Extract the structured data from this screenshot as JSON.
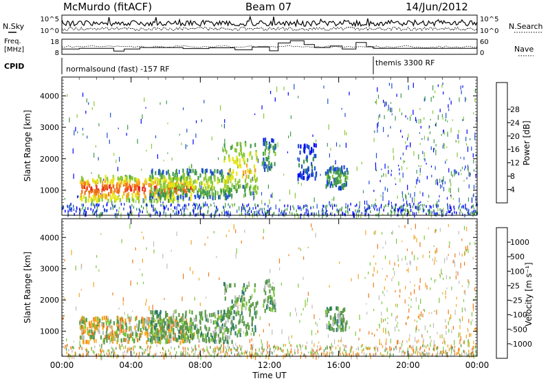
{
  "header": {
    "station": "McMurdo (fitACF)",
    "beam": "Beam 07",
    "date": "14/Jun/2012"
  },
  "labels": {
    "nsky": "N.Sky",
    "nsearch": "N.Search",
    "freq_line1": "Freq.",
    "freq_line2": "[MHz]",
    "nave": "Nave",
    "cpid": "CPID"
  },
  "cpid_segments": [
    {
      "label": "normalsound (fast) -157 RF",
      "start_hour": 0.0,
      "end_hour": 18.0
    },
    {
      "label": "themis 3300 RF",
      "start_hour": 18.0,
      "end_hour": 24.0
    }
  ],
  "noise_panel": {
    "left_ticks": [
      "10^5",
      "10^0"
    ],
    "right_ticks": [
      "10^5",
      "10^0"
    ]
  },
  "freq_panel": {
    "left_ticks": [
      "18",
      "8"
    ],
    "right_ticks": [
      "60",
      "0"
    ],
    "freq_steps": [
      {
        "start": 0.0,
        "end": 1.0,
        "mhz": 11.5
      },
      {
        "start": 1.0,
        "end": 3.0,
        "mhz": 12.0
      },
      {
        "start": 3.0,
        "end": 3.6,
        "mhz": 10.2
      },
      {
        "start": 3.6,
        "end": 4.5,
        "mhz": 11.5
      },
      {
        "start": 4.5,
        "end": 7.0,
        "mhz": 12.5
      },
      {
        "start": 7.0,
        "end": 8.5,
        "mhz": 11.8
      },
      {
        "start": 8.5,
        "end": 10.0,
        "mhz": 12.3
      },
      {
        "start": 10.0,
        "end": 11.0,
        "mhz": 11.0
      },
      {
        "start": 11.0,
        "end": 12.0,
        "mhz": 12.8
      },
      {
        "start": 12.0,
        "end": 12.5,
        "mhz": 10.3
      },
      {
        "start": 12.5,
        "end": 13.2,
        "mhz": 15.5
      },
      {
        "start": 13.2,
        "end": 14.0,
        "mhz": 17.0
      },
      {
        "start": 14.0,
        "end": 14.6,
        "mhz": 14.5
      },
      {
        "start": 14.6,
        "end": 15.5,
        "mhz": 12.5
      },
      {
        "start": 15.5,
        "end": 16.2,
        "mhz": 13.5
      },
      {
        "start": 16.2,
        "end": 17.0,
        "mhz": 11.5
      },
      {
        "start": 17.0,
        "end": 17.6,
        "mhz": 15.8
      },
      {
        "start": 17.6,
        "end": 18.0,
        "mhz": 13.0
      },
      {
        "start": 18.0,
        "end": 24.0,
        "mhz": 12.0
      }
    ]
  },
  "chart_data": [
    {
      "type": "heatmap",
      "quantity": "Power",
      "ylabel": "Slant Range [km]",
      "ylim": [
        200,
        4600
      ],
      "yticks": [
        "1000",
        "2000",
        "3000",
        "4000"
      ],
      "colorbar_label": "Power [dB]",
      "colorbar_ticks": [
        "4",
        "8",
        "12",
        "16",
        "20",
        "24",
        "28"
      ],
      "colorbar_colors": [
        "#0000ff",
        "#1f4fd0",
        "#3f9a4a",
        "#8ac837",
        "#e8e415",
        "#f5a623",
        "#f06a1a",
        "#e8281e",
        "#ee0000"
      ],
      "features": [
        {
          "t0": 1.0,
          "t1": 7.5,
          "r0": 700,
          "r1": 1500,
          "value": 28
        },
        {
          "t0": 5.0,
          "t1": 9.8,
          "r0": 800,
          "r1": 1700,
          "value": 16
        },
        {
          "t0": 9.3,
          "t1": 11.3,
          "r0": 900,
          "r1": 2600,
          "value": 20
        },
        {
          "t0": 11.6,
          "t1": 12.3,
          "r0": 1700,
          "r1": 2700,
          "value": 12
        },
        {
          "t0": 13.6,
          "t1": 14.7,
          "r0": 1400,
          "r1": 2500,
          "value": 8
        },
        {
          "t0": 15.2,
          "t1": 16.5,
          "r0": 1100,
          "r1": 1800,
          "value": 12
        }
      ]
    },
    {
      "type": "heatmap",
      "quantity": "Velocity",
      "ylabel": "Slant Range [km]",
      "ylim": [
        200,
        4600
      ],
      "yticks": [
        "1000",
        "2000",
        "3000",
        "4000"
      ],
      "colorbar_label": "Velocity [m s⁻¹]",
      "colorbar_ticks": [
        "1000",
        "500",
        "100",
        "25",
        "-25",
        "-100",
        "-500",
        "-1000"
      ],
      "colorbar_colors": [
        "#1e3fc8",
        "#2a7a6a",
        "#5a9a4a",
        "#7ac83a",
        "#bdbdbd",
        "#f5a623",
        "#f07818",
        "#e8281e",
        "#ee0000"
      ],
      "features": [
        {
          "t0": 1.0,
          "t1": 7.5,
          "r0": 700,
          "r1": 1500,
          "value": -100
        },
        {
          "t0": 5.0,
          "t1": 9.8,
          "r0": 700,
          "r1": 1700,
          "value": 100
        },
        {
          "t0": 9.3,
          "t1": 11.3,
          "r0": 900,
          "r1": 2600,
          "value": 100
        },
        {
          "t0": 11.6,
          "t1": 12.3,
          "r0": 1700,
          "r1": 2700,
          "value": 100
        },
        {
          "t0": 15.2,
          "t1": 16.5,
          "r0": 1100,
          "r1": 1800,
          "value": 100
        }
      ]
    }
  ],
  "x_axis": {
    "label": "Time UT",
    "xlim": [
      0,
      24
    ],
    "ticks": [
      "00:00",
      "04:00",
      "08:00",
      "12:00",
      "16:00",
      "20:00",
      "00:00"
    ]
  }
}
